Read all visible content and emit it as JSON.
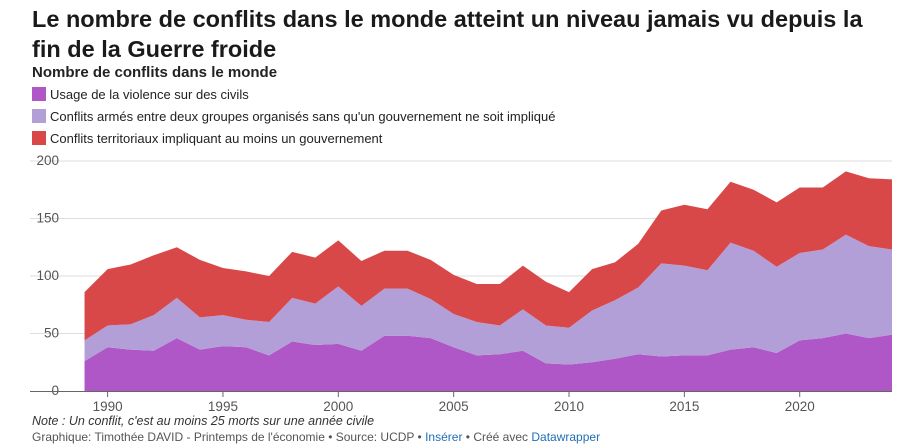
{
  "title": "Le nombre de conflits dans le monde atteint un niveau jamais vu depuis la fin de la Guerre froide",
  "subtitle": "Nombre de conflits dans le monde",
  "colors": {
    "civils": "#b057c7",
    "groupes": "#b39fd8",
    "territoriaux": "#d94848",
    "grid": "#dddddd",
    "axis": "#666666"
  },
  "chart_data": {
    "type": "area",
    "stacked": true,
    "title": "",
    "xlabel": "",
    "ylabel": "",
    "x": [
      1989,
      1990,
      1991,
      1992,
      1993,
      1994,
      1995,
      1996,
      1997,
      1998,
      1999,
      2000,
      2001,
      2002,
      2003,
      2004,
      2005,
      2006,
      2007,
      2008,
      2009,
      2010,
      2011,
      2012,
      2013,
      2014,
      2015,
      2016,
      2017,
      2018,
      2019,
      2020,
      2021,
      2022,
      2023,
      2024
    ],
    "xlim": [
      1988.5,
      2024
    ],
    "ylim": [
      0,
      200
    ],
    "yticks": [
      0,
      50,
      100,
      150,
      200
    ],
    "xticks": [
      1990,
      1995,
      2000,
      2005,
      2010,
      2015,
      2020
    ],
    "grid": "horizontal",
    "legend": "top-left",
    "series": [
      {
        "name": "Usage de la violence sur des civils",
        "color": "#b057c7",
        "values": [
          26,
          38,
          36,
          35,
          46,
          36,
          39,
          38,
          31,
          43,
          40,
          41,
          35,
          48,
          48,
          46,
          38,
          31,
          32,
          35,
          24,
          23,
          25,
          28,
          32,
          30,
          31,
          31,
          36,
          38,
          33,
          44,
          46,
          50,
          46,
          49
        ]
      },
      {
        "name": "Conflits armés entre deux groupes organisés sans qu'un gouvernement ne soit impliqué",
        "color": "#b39fd8",
        "values": [
          18,
          19,
          22,
          31,
          35,
          28,
          27,
          24,
          29,
          38,
          36,
          50,
          39,
          41,
          41,
          34,
          29,
          29,
          25,
          36,
          33,
          32,
          45,
          51,
          58,
          81,
          78,
          74,
          93,
          84,
          75,
          76,
          77,
          86,
          80,
          74
        ]
      },
      {
        "name": "Conflits territoriaux impliquant au moins un gouvernement",
        "color": "#d94848",
        "values": [
          42,
          49,
          52,
          52,
          44,
          50,
          41,
          42,
          40,
          40,
          40,
          40,
          39,
          33,
          33,
          34,
          34,
          33,
          36,
          38,
          38,
          31,
          36,
          33,
          38,
          46,
          53,
          53,
          53,
          53,
          56,
          57,
          54,
          55,
          59,
          61
        ]
      }
    ]
  },
  "note": "Note : Un conflit, c'est au moins 25 morts sur une année civile",
  "credits": {
    "prefix": "Graphique: Timothée DAVID - Printemps de l'économie • Source: UCDP • ",
    "embed_link": "Insérer",
    "middle": " • Créé avec ",
    "tool_link": "Datawrapper"
  }
}
